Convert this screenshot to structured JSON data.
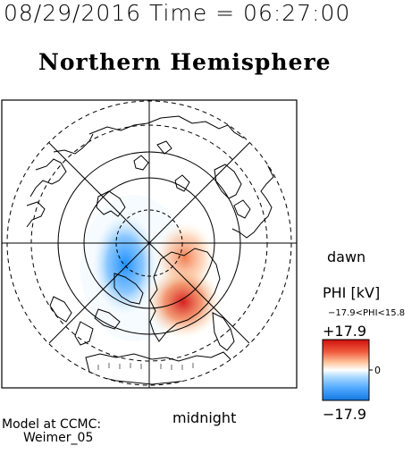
{
  "header": {
    "datetime": "08/29/2016  Time = 06:27:00"
  },
  "plot": {
    "title": "Northern Hemisphere",
    "labels": {
      "dawn": "dawn",
      "midnight": "midnight"
    }
  },
  "colorbar": {
    "title": "PHI [kV]",
    "range_text": "−17.9<PHI<15.8",
    "max_label": "+17.9",
    "min_label": "−17.9",
    "zero_label": "0",
    "colors": {
      "negative": "#1e90ff",
      "positive": "#d62020",
      "neutral": "#ffffff"
    }
  },
  "model": {
    "line1": "Model at CCMC:",
    "line2": "Weimer_05"
  }
}
